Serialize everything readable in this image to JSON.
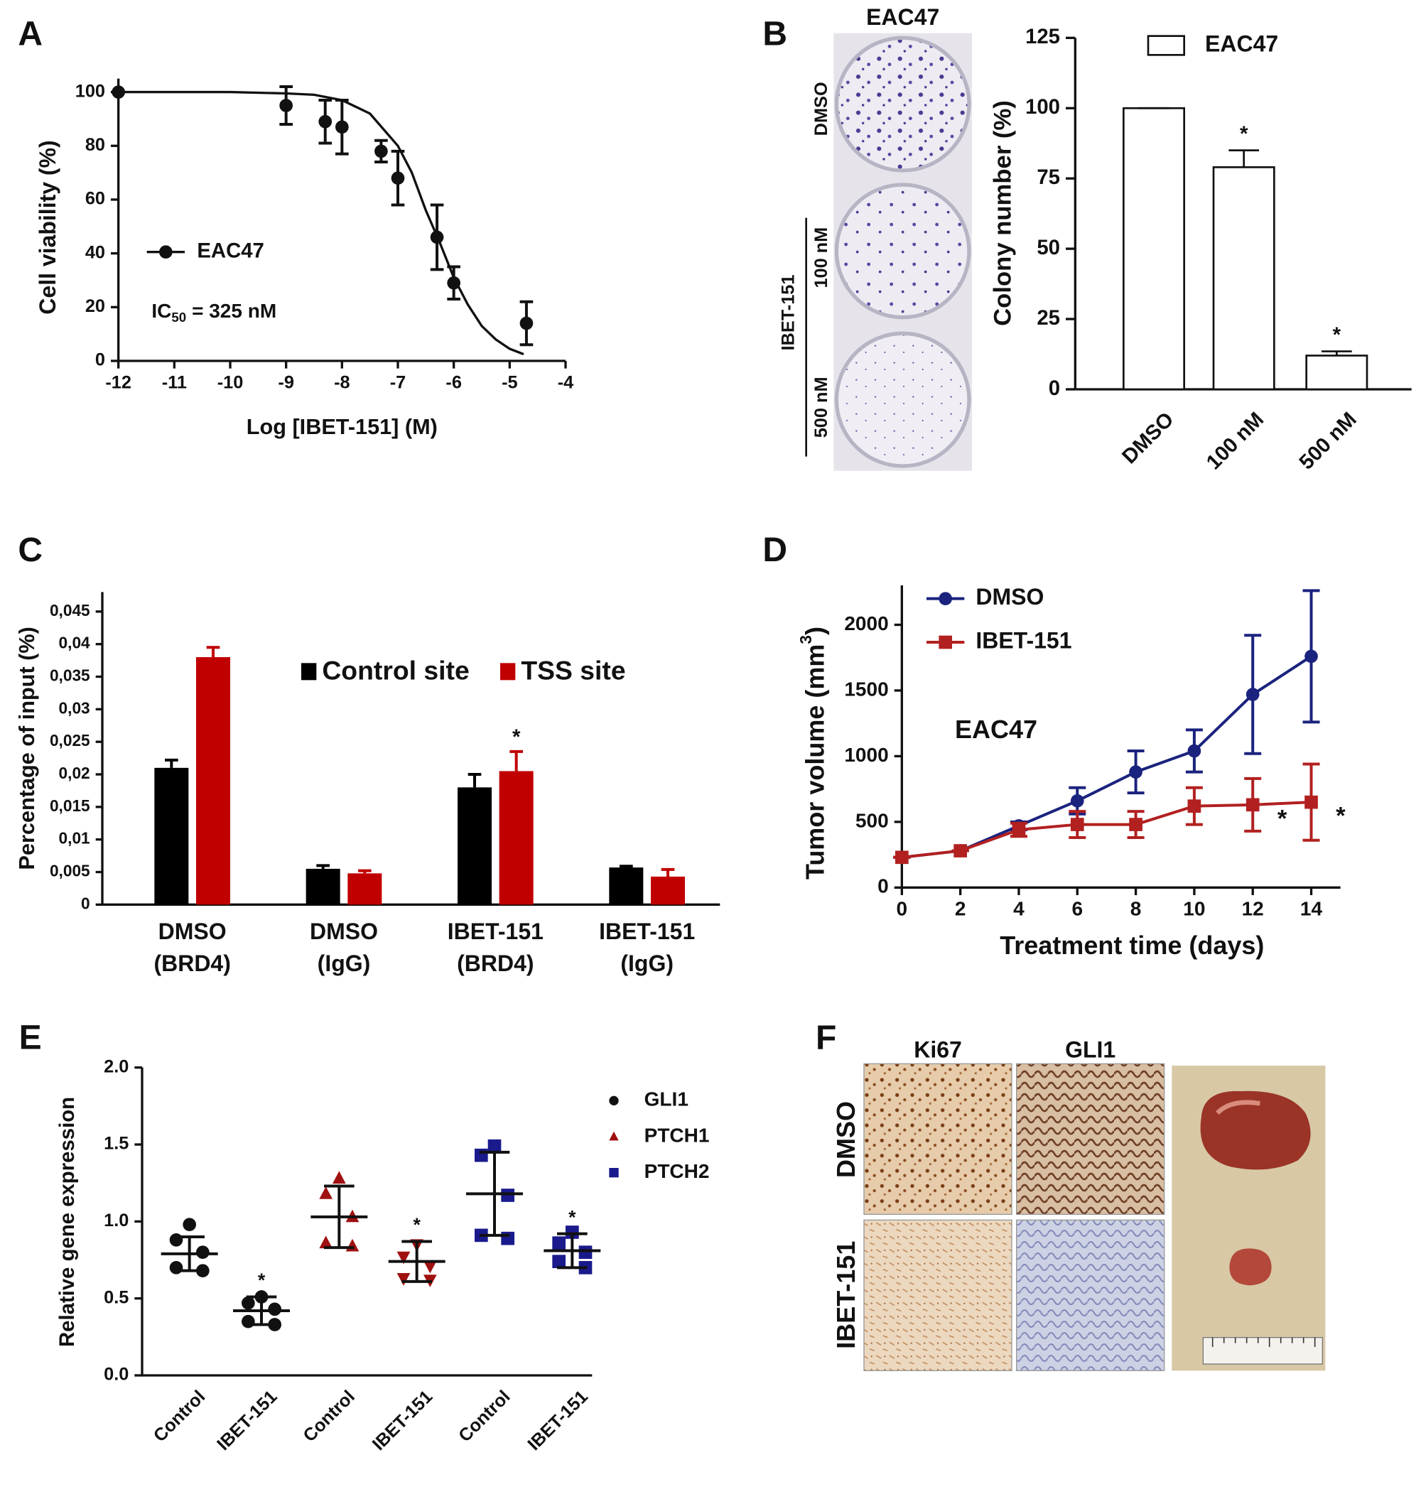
{
  "chart_data": [
    {
      "panel": "A",
      "type": "scatter",
      "xlabel": "Log [IBET-151] (M)",
      "ylabel": "Cell viability (%)",
      "xlim": [
        -12,
        -4
      ],
      "xticks": [
        -12,
        -11,
        -10,
        -9,
        -8,
        -7,
        -6,
        -5,
        -4
      ],
      "ylim": [
        0,
        105
      ],
      "yticks": [
        0,
        20,
        40,
        60,
        80,
        100
      ],
      "series": [
        {
          "name": "EAC47",
          "color": "#111111",
          "x": [
            -12,
            -9,
            -8.3,
            -8,
            -7.3,
            -7,
            -6.3,
            -6,
            -4.7
          ],
          "values": [
            100,
            95,
            89,
            87,
            78,
            68,
            46,
            29,
            14
          ],
          "errors": [
            0,
            7,
            8,
            10,
            4,
            10,
            12,
            6,
            8
          ]
        }
      ],
      "curve": {
        "x": [
          -12,
          -10,
          -9,
          -8.5,
          -8,
          -7.5,
          -7,
          -6.75,
          -6.5,
          -6.25,
          -6,
          -5.75,
          -5.5,
          -5.25,
          -5,
          -4.75
        ],
        "values": [
          100,
          100,
          99.5,
          99,
          97,
          92,
          80,
          70,
          56,
          44,
          31,
          21,
          13,
          8,
          4.5,
          2.5
        ]
      },
      "annotation": {
        "text": "IC",
        "subscript": "50",
        "rest": "= 325 nM"
      }
    },
    {
      "panel": "B",
      "type": "bar",
      "ylabel": "Colony number (%)",
      "categories": [
        "DMSO",
        "100 nM",
        "500 nM"
      ],
      "series": [
        {
          "name": "EAC47",
          "color": "#ffffff",
          "values": [
            100,
            79,
            12
          ],
          "errors": [
            0,
            6,
            1.5
          ],
          "significant": [
            false,
            true,
            true
          ]
        }
      ],
      "significance_marker": "*",
      "ylim": [
        0,
        125
      ],
      "yticks": [
        0,
        25,
        50,
        75,
        100,
        125
      ],
      "photo": {
        "title": "EAC47",
        "rows": [
          "DMSO",
          "100 nM",
          "500 nM"
        ],
        "group": "IBET-151"
      }
    },
    {
      "panel": "C",
      "type": "grouped_bar",
      "ylabel": "Percentage of input (%)",
      "categories": [
        [
          "DMSO",
          "(BRD4)"
        ],
        [
          "DMSO",
          "(IgG)"
        ],
        [
          "IBET-151",
          "(BRD4)"
        ],
        [
          "IBET-151",
          "(IgG)"
        ]
      ],
      "series": [
        {
          "name": "Control site",
          "color": "#000000",
          "values": [
            0.021,
            0.0055,
            0.018,
            0.0057
          ],
          "errors": [
            0.0012,
            0.0005,
            0.002,
            0.0002
          ],
          "significant": [
            false,
            false,
            false,
            false
          ]
        },
        {
          "name": "TSS site",
          "color": "#c00000",
          "values": [
            0.038,
            0.0048,
            0.0205,
            0.0043
          ],
          "errors": [
            0.0015,
            0.0004,
            0.003,
            0.0011
          ],
          "significant": [
            false,
            false,
            true,
            false
          ]
        }
      ],
      "significance_marker": "*",
      "ylim": [
        0,
        0.048
      ],
      "yticks": [
        0,
        {
          "value": 0.005,
          "label": "0,005"
        },
        {
          "value": 0.01,
          "label": "0,01"
        },
        {
          "value": 0.015,
          "label": "0,015"
        },
        {
          "value": 0.02,
          "label": "0,02"
        },
        {
          "value": 0.025,
          "label": "0,025"
        },
        {
          "value": 0.03,
          "label": "0,03"
        },
        {
          "value": 0.035,
          "label": "0,035"
        },
        {
          "value": 0.04,
          "label": "0,04"
        },
        {
          "value": 0.045,
          "label": "0,045"
        }
      ]
    },
    {
      "panel": "D",
      "type": "line",
      "xlabel": "Treatment time (days)",
      "ylabel": {
        "text": "Tumor volume (mm",
        "superscript": "3",
        "rest": ")"
      },
      "annotation": "EAC47",
      "x": [
        0,
        2,
        4,
        6,
        8,
        10,
        12,
        14
      ],
      "xlim": [
        0,
        15
      ],
      "xticks": [
        0,
        2,
        4,
        6,
        8,
        10,
        12,
        14
      ],
      "ylim": [
        0,
        2300
      ],
      "yticks": [
        0,
        500,
        1000,
        1500,
        2000
      ],
      "series": [
        {
          "name": "DMSO",
          "color": "#1a237e",
          "marker": "circle",
          "values": [
            230,
            280,
            470,
            660,
            880,
            1040,
            1470,
            1760
          ],
          "errors": [
            0,
            0,
            30,
            100,
            160,
            160,
            450,
            500
          ],
          "significant": [
            false,
            false,
            false,
            false,
            false,
            false,
            false,
            false
          ]
        },
        {
          "name": "IBET-151",
          "color": "#b22020",
          "marker": "square",
          "values": [
            230,
            280,
            440,
            480,
            480,
            620,
            630,
            650
          ],
          "errors": [
            0,
            0,
            50,
            100,
            100,
            140,
            200,
            290
          ],
          "significant": [
            false,
            false,
            false,
            false,
            false,
            false,
            true,
            true
          ]
        }
      ],
      "significance_marker": "*"
    },
    {
      "panel": "E",
      "type": "dotplot",
      "ylabel": "Relative gene expression",
      "categories": [
        "Control",
        "IBET-151",
        "Control",
        "IBET-151",
        "Control",
        "IBET-151"
      ],
      "ylim": [
        0,
        2
      ],
      "yticks": [
        {
          "value": 0,
          "label": "0.0"
        },
        {
          "value": 0.5,
          "label": "0.5"
        },
        {
          "value": 1,
          "label": "1.0"
        },
        {
          "value": 1.5,
          "label": "1.5"
        },
        {
          "value": 2,
          "label": "2.0"
        }
      ],
      "series": [
        {
          "name": "GLI1",
          "color": "#111111",
          "markers": [
            "circle",
            "circle"
          ],
          "values": [
            [
              0.98,
              0.88,
              0.8,
              0.7,
              0.68
            ],
            [
              0.51,
              0.47,
              0.43,
              0.35,
              0.33
            ]
          ],
          "means": [
            0.79,
            0.42
          ],
          "sds": [
            0.11,
            0.09
          ],
          "significant": [
            false,
            true
          ]
        },
        {
          "name": "PTCH1",
          "color": "#a01010",
          "markers": [
            "triangle-up",
            "triangle-down"
          ],
          "values": [
            [
              1.28,
              1.18,
              1.03,
              0.86,
              0.84
            ],
            [
              0.85,
              0.77,
              0.71,
              0.63,
              0.62
            ]
          ],
          "means": [
            1.03,
            0.74
          ],
          "sds": [
            0.2,
            0.13
          ],
          "significant": [
            false,
            true
          ]
        },
        {
          "name": "PTCH2",
          "color": "#1a1a8c",
          "markers": [
            "square",
            "square"
          ],
          "values": [
            [
              1.49,
              1.43,
              1.17,
              0.91,
              0.89
            ],
            [
              0.93,
              0.86,
              0.8,
              0.74,
              0.7
            ]
          ],
          "means": [
            1.18,
            0.81
          ],
          "sds": [
            0.27,
            0.11
          ],
          "significant": [
            false,
            true
          ]
        }
      ],
      "significance_marker": "*"
    }
  ],
  "panel_f": {
    "panel": "F",
    "columns": [
      "Ki67",
      "GLI1"
    ],
    "rows": [
      "DMSO",
      "IBET-151"
    ]
  }
}
